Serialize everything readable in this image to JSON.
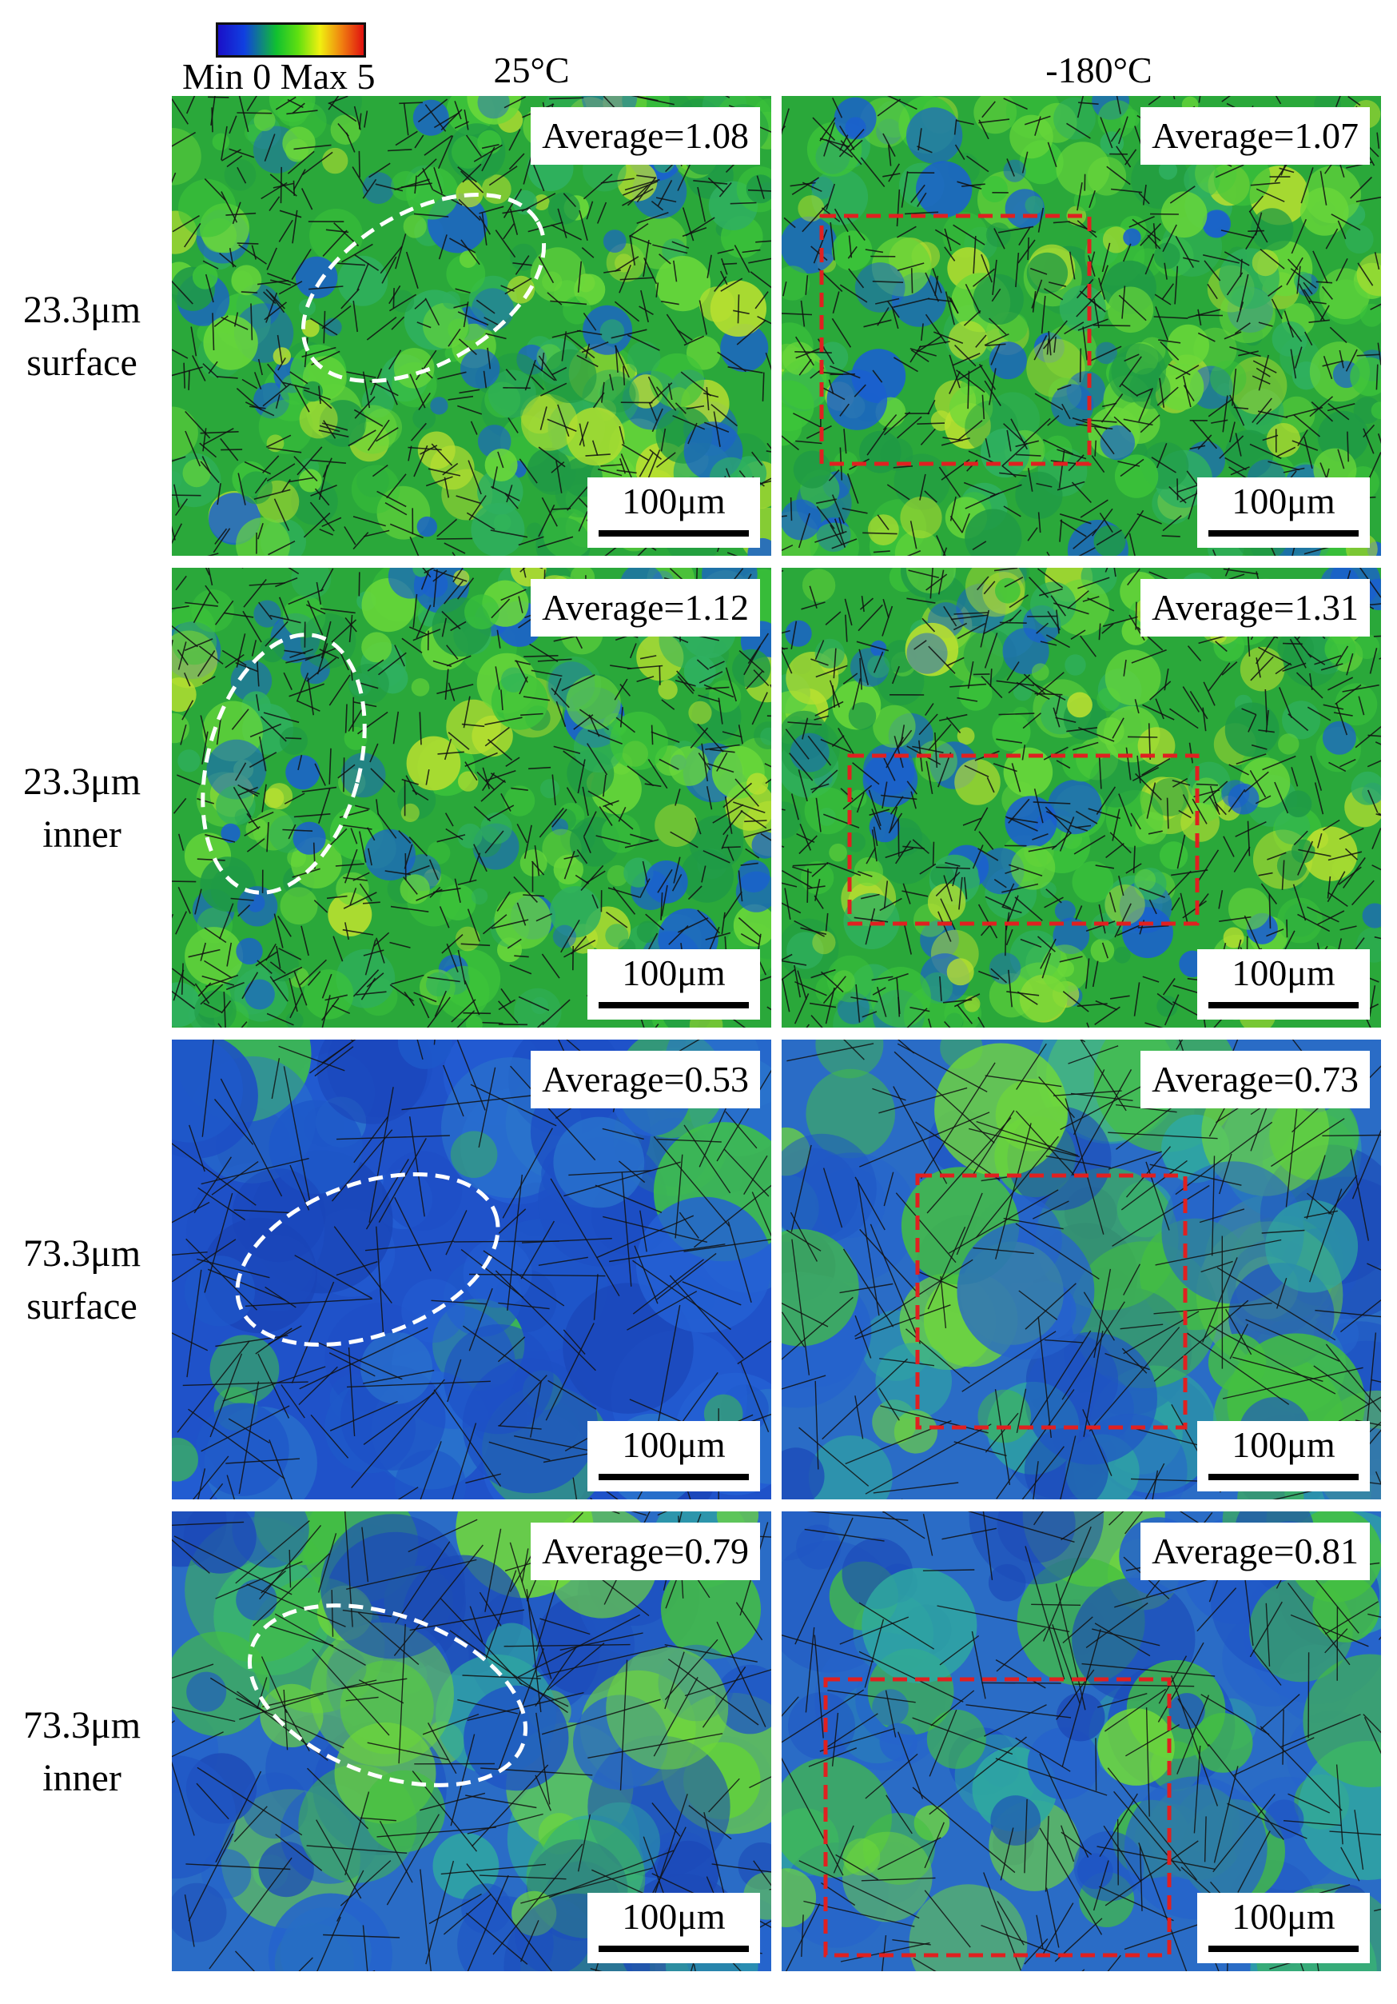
{
  "colorbar": {
    "label": "Min 0 Max 5",
    "min": 0,
    "max": 5
  },
  "columns": [
    "25°C",
    "-180°C"
  ],
  "rows": [
    {
      "line1": "23.3μm",
      "line2": "surface"
    },
    {
      "line1": "23.3μm",
      "line2": "inner"
    },
    {
      "line1": "73.3μm",
      "line2": "surface"
    },
    {
      "line1": "73.3μm",
      "line2": "inner"
    }
  ],
  "panels": [
    {
      "average": "Average=1.08",
      "scale": "100μm",
      "marker": "white-ellipse",
      "style": "fine"
    },
    {
      "average": "Average=1.07",
      "scale": "100μm",
      "marker": "red-rectangle",
      "style": "fine"
    },
    {
      "average": "Average=1.12",
      "scale": "100μm",
      "marker": "white-ellipse",
      "style": "fine"
    },
    {
      "average": "Average=1.31",
      "scale": "100μm",
      "marker": "red-rectangle",
      "style": "fine"
    },
    {
      "average": "Average=0.53",
      "scale": "100μm",
      "marker": "white-ellipse",
      "style": "coarse-blue"
    },
    {
      "average": "Average=0.73",
      "scale": "100μm",
      "marker": "red-rectangle",
      "style": "coarse"
    },
    {
      "average": "Average=0.79",
      "scale": "100μm",
      "marker": "white-ellipse",
      "style": "coarse"
    },
    {
      "average": "Average=0.81",
      "scale": "100μm",
      "marker": "red-rectangle",
      "style": "coarse"
    }
  ],
  "colors": {
    "marker_white": "#ffffff",
    "marker_red": "#e02020",
    "grain_boundary": "#111111"
  }
}
